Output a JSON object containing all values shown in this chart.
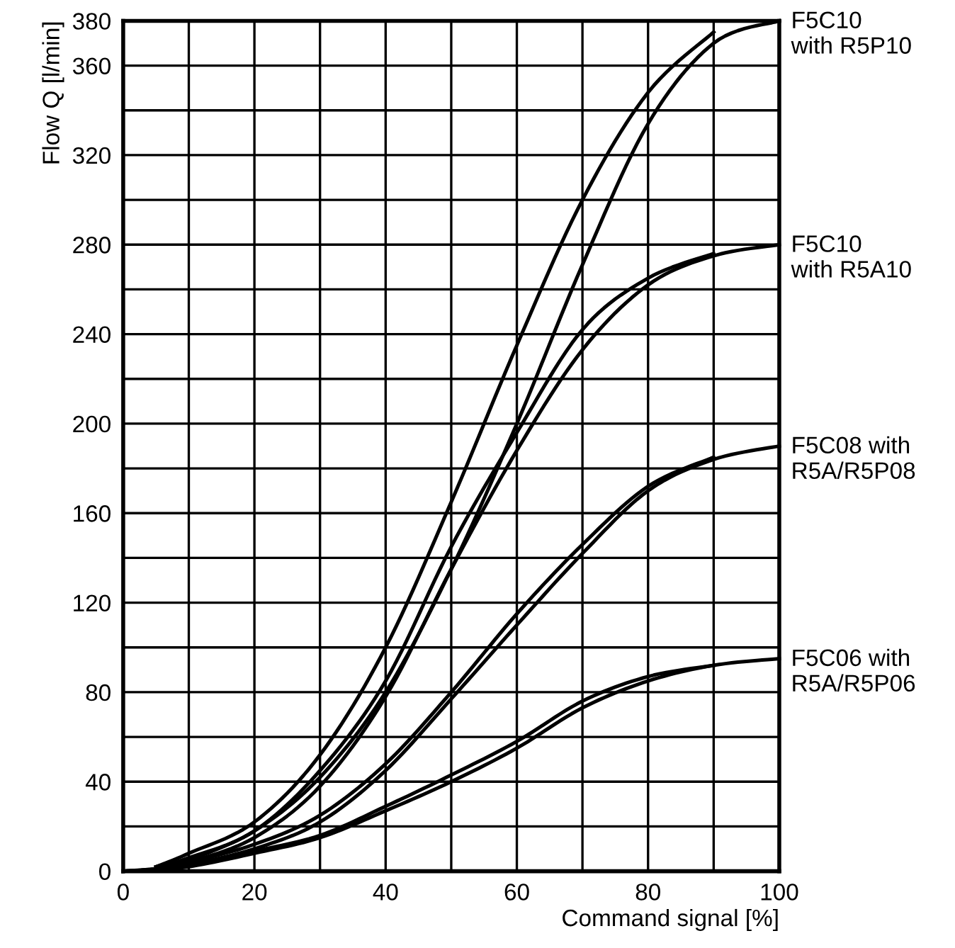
{
  "chart_data": {
    "type": "line",
    "xlabel": "Command signal [%]",
    "ylabel": "Flow Q [l/min]",
    "x": [
      0,
      5,
      10,
      20,
      30,
      40,
      50,
      60,
      70,
      80,
      90,
      100
    ],
    "series": [
      {
        "x": [
          5,
          10,
          20,
          30,
          40,
          50,
          60,
          70,
          80,
          90
        ],
        "color": "#000000",
        "values": [
          2,
          8,
          22,
          52,
          100,
          165,
          235,
          300,
          348,
          375
        ]
      },
      {
        "name": "F5C10\nwith R5P10",
        "color": "#000000",
        "values": [
          0,
          1,
          5,
          18,
          42,
          80,
          135,
          200,
          271,
          334,
          370,
          380
        ]
      },
      {
        "x": [
          5,
          10,
          20,
          30,
          40,
          50,
          60,
          70,
          80,
          90
        ],
        "color": "#000000",
        "values": [
          2,
          6,
          18,
          45,
          85,
          145,
          196,
          242,
          265,
          276
        ]
      },
      {
        "name": "F5C10\nwith R5A10",
        "color": "#000000",
        "values": [
          0,
          1,
          4,
          15,
          38,
          78,
          135,
          188,
          233,
          262,
          275,
          280
        ]
      },
      {
        "x": [
          5,
          10,
          20,
          30,
          40,
          50,
          60,
          70,
          80,
          90
        ],
        "color": "#000000",
        "values": [
          1,
          4,
          12,
          25,
          48,
          80,
          115,
          146,
          172,
          185
        ]
      },
      {
        "name": "F5C08 with\nR5A/R5P08",
        "color": "#000000",
        "values": [
          0,
          1,
          3,
          10,
          22,
          45,
          77,
          110,
          142,
          170,
          184,
          190
        ]
      },
      {
        "x": [
          5,
          10,
          20,
          30,
          40,
          50,
          60,
          70,
          80,
          90
        ],
        "color": "#000000",
        "values": [
          1,
          3,
          9,
          16,
          29,
          43,
          58,
          76,
          87,
          92
        ]
      },
      {
        "name": "F5C06 with\nR5A/R5P06",
        "color": "#000000",
        "values": [
          0,
          1,
          2,
          8,
          15,
          27,
          40,
          55,
          73,
          85,
          92,
          95
        ]
      }
    ],
    "xlim": [
      0,
      100
    ],
    "ylim": [
      0,
      380
    ],
    "xticks": [
      0,
      {
        "value": 10,
        "label": null
      },
      20,
      {
        "value": 30,
        "label": null
      },
      40,
      {
        "value": 50,
        "label": null
      },
      60,
      {
        "value": 70,
        "label": null
      },
      80,
      {
        "value": 90,
        "label": null
      },
      100
    ],
    "yticks": [
      0,
      {
        "value": 20,
        "label": null
      },
      40,
      {
        "value": 60,
        "label": null
      },
      80,
      {
        "value": 100,
        "label": null
      },
      120,
      {
        "value": 140,
        "label": null
      },
      160,
      {
        "value": 180,
        "label": null
      },
      200,
      {
        "value": 220,
        "label": null
      },
      240,
      {
        "value": 260,
        "label": null
      },
      280,
      {
        "value": 300,
        "label": null
      },
      320,
      {
        "value": 340,
        "label": null
      },
      360,
      380
    ],
    "grid": true,
    "legend": false,
    "marker": "none",
    "line_style": "solid"
  }
}
